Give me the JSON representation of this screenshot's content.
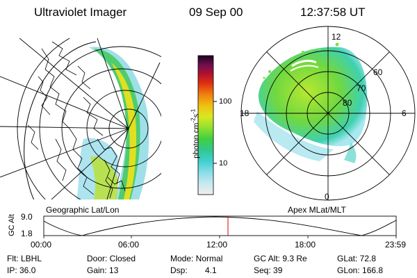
{
  "header": {
    "title": "Ultraviolet Imager",
    "date": "09 Sep 00",
    "time": "12:37:58 UT"
  },
  "colorbar": {
    "label": "photon cm",
    "label_exp1": "-2",
    "label_s": "s",
    "label_exp2": "-1",
    "ticks": [
      "100",
      "10"
    ],
    "colors": [
      "#eeeeee",
      "#c8e8f0",
      "#88dde8",
      "#40d0d0",
      "#30c890",
      "#40d040",
      "#90e030",
      "#d8e820",
      "#f0c010",
      "#f08010",
      "#e03010",
      "#b01030",
      "#701050",
      "#300830",
      "#000000"
    ]
  },
  "panels": {
    "geo_label": "Geographic Lat/Lon",
    "apex_label": "Apex MLat/MLT",
    "apex_lat_labels": [
      "60",
      "70",
      "80"
    ],
    "apex_mlt_labels": {
      "top": "12",
      "left": "18",
      "right": "6",
      "bottom": "0"
    }
  },
  "altplot": {
    "axis_label": "GC Alt",
    "ymax": "9.0",
    "ymin": "1.8",
    "x_ticks": [
      "00:00",
      "06:00",
      "12:00",
      "18:00",
      "23:59"
    ],
    "marker_color": "#e00000"
  },
  "info": {
    "flt": "Flt: LBHL",
    "door": "Door: Closed",
    "mode": "Mode: Normal",
    "gcalt": "GC Alt: 9.3 Re",
    "glat": "GLat:  72.8",
    "ip": "IP: 36.0",
    "gain": "Gain: 13",
    "dsp_label": "Dsp:",
    "dsp_val": "4.1",
    "seq": "Seq: 39",
    "glon": "GLon: 166.8"
  }
}
